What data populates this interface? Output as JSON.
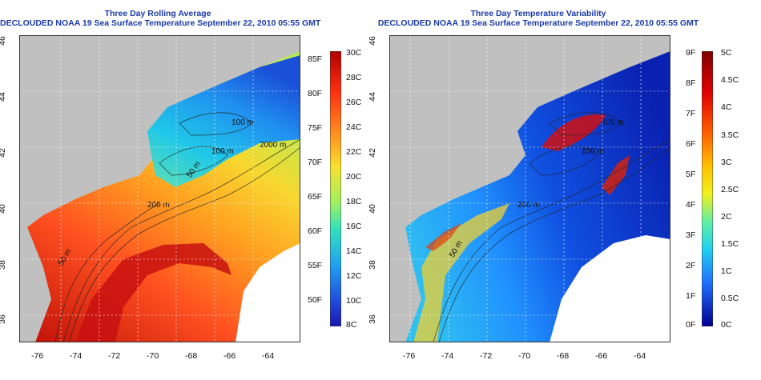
{
  "maps": [
    {
      "title_line1": "Three Day Rolling Average",
      "title_line2": "DECLOUDED NOAA 19 Sea Surface Temperature September 22, 2010 05:55 GMT",
      "x_ticks": [
        "-76",
        "-74",
        "-72",
        "-70",
        "-68",
        "-66",
        "-64"
      ],
      "y_ticks": [
        "46",
        "44",
        "42",
        "40",
        "38",
        "36"
      ],
      "contour_labels": [
        "100 m",
        "100 m",
        "50 m",
        "2000 m",
        "200 m",
        "50 m"
      ],
      "colorbar_right": [
        "30C",
        "28C",
        "26C",
        "24C",
        "22C",
        "20C",
        "18C",
        "16C",
        "14C",
        "12C",
        "10C",
        "8C"
      ],
      "colorbar_left": [
        "85F",
        "80F",
        "75F",
        "70F",
        "65F",
        "60F",
        "55F",
        "50F"
      ]
    },
    {
      "title_line1": "Three Day Temperature Variability",
      "title_line2": "DECLOUDED NOAA 19 Sea Surface Temperature September 22, 2010 05:55 GMT",
      "x_ticks": [
        "-76",
        "-74",
        "-72",
        "-70",
        "-68",
        "-66",
        "-64"
      ],
      "y_ticks": [
        "46",
        "44",
        "42",
        "40",
        "38",
        "36"
      ],
      "contour_labels": [
        "100 m",
        "100 m",
        "200 m",
        "50 m"
      ],
      "colorbar_right": [
        "5C",
        "4.5C",
        "4C",
        "3.5C",
        "3C",
        "2.5C",
        "2C",
        "1.5C",
        "1C",
        "0.5C",
        "0C"
      ],
      "colorbar_left": [
        "9F",
        "8F",
        "7F",
        "6F",
        "5F",
        "4F",
        "3F",
        "2F",
        "1F",
        "0F"
      ]
    }
  ],
  "colors": {
    "land": "#c0c0c0",
    "title": "#1a3aa8",
    "sst_scale": [
      "#b00000",
      "#e01010",
      "#ff4020",
      "#ff8020",
      "#ffb020",
      "#f8e030",
      "#c8f040",
      "#60e090",
      "#20d8e0",
      "#20a8f0",
      "#2060e0",
      "#1818b0"
    ],
    "var_scale": [
      "#800000",
      "#e00000",
      "#ff5000",
      "#ffb000",
      "#f0f020",
      "#80f080",
      "#20e0e0",
      "#2090ff",
      "#1030e0",
      "#000090"
    ]
  }
}
